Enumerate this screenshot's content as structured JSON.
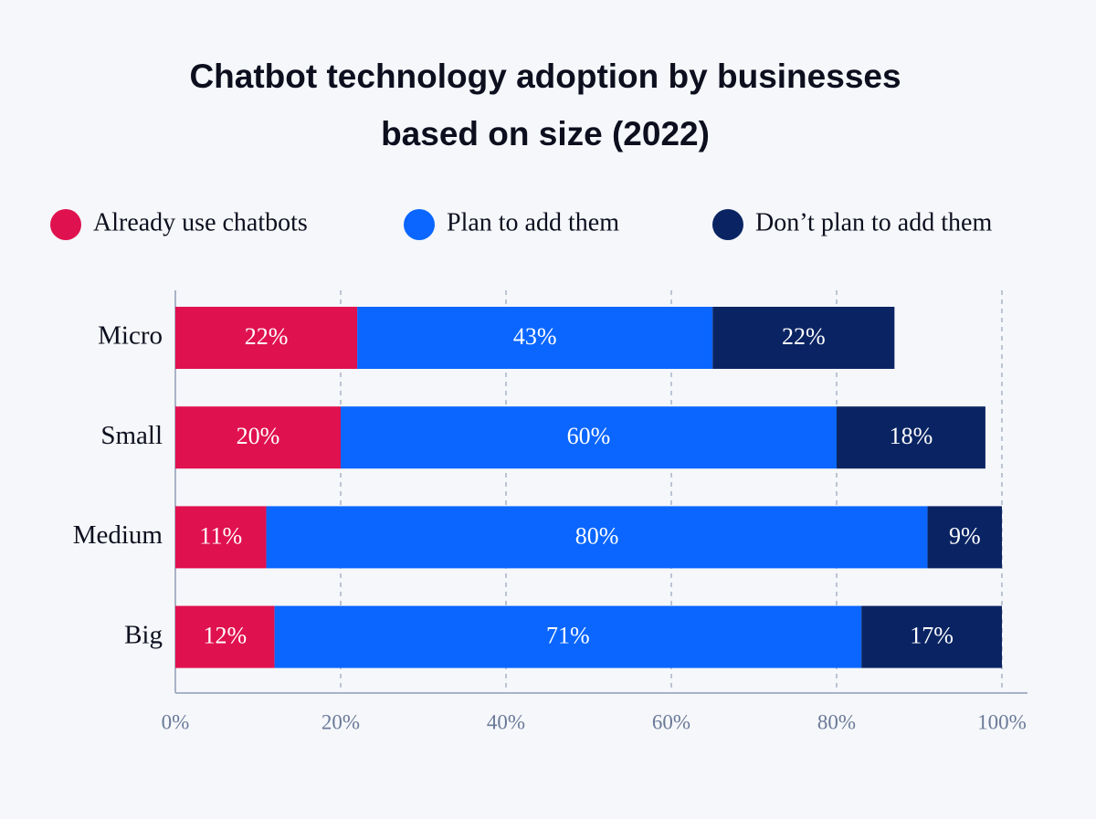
{
  "chart_data": {
    "type": "stacked-bar-horizontal",
    "title": [
      "Chatbot technology adoption by businesses",
      "based on size (2022)"
    ],
    "categories": [
      "Micro",
      "Small",
      "Medium",
      "Big"
    ],
    "series": [
      {
        "name": "Already use chatbots",
        "color": "#e0114f",
        "values": [
          22,
          20,
          11,
          12
        ],
        "value_labels": [
          "22%",
          "20%",
          "11%",
          "12%"
        ]
      },
      {
        "name": "Plan to add them",
        "color": "#0a66ff",
        "values": [
          43,
          60,
          80,
          71
        ],
        "value_labels": [
          "43%",
          "60%",
          "80%",
          "71%"
        ]
      },
      {
        "name": "Don’t plan to add them",
        "color": "#0a2463",
        "values": [
          22,
          18,
          9,
          17
        ],
        "value_labels": [
          "22%",
          "18%",
          "9%",
          "17%"
        ]
      }
    ],
    "xlim": [
      0,
      100
    ],
    "xticks": [
      {
        "value": 0,
        "label": "0%"
      },
      {
        "value": 20,
        "label": "20%"
      },
      {
        "value": 40,
        "label": "40%"
      },
      {
        "value": 60,
        "label": "60%"
      },
      {
        "value": 80,
        "label": "80%"
      },
      {
        "value": 100,
        "label": "100%"
      }
    ],
    "grid": true
  }
}
